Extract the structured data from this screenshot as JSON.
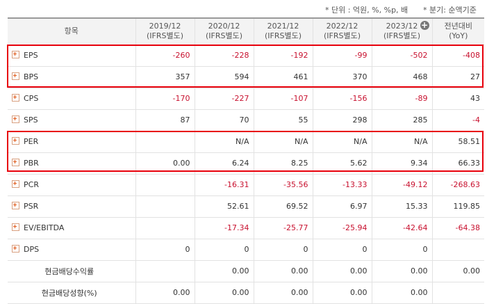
{
  "notes": {
    "unit": "* 단위 : 억원, %, %p, 배",
    "period": "* 분기: 순액기준"
  },
  "table": {
    "headers": [
      {
        "line1": "항목",
        "line2": ""
      },
      {
        "line1": "2019/12",
        "line2": "(IFRS별도)"
      },
      {
        "line1": "2020/12",
        "line2": "(IFRS별도)"
      },
      {
        "line1": "2021/12",
        "line2": "(IFRS별도)"
      },
      {
        "line1": "2022/12",
        "line2": "(IFRS별도)"
      },
      {
        "line1": "2023/12",
        "line2": "(IFRS별도)"
      },
      {
        "line1": "전년대비",
        "line2": "(YoY)"
      }
    ],
    "rows": [
      {
        "label": "EPS",
        "expandable": true,
        "values": [
          "-260",
          "-228",
          "-192",
          "-99",
          "-502",
          "-408"
        ]
      },
      {
        "label": "BPS",
        "expandable": true,
        "values": [
          "357",
          "594",
          "461",
          "370",
          "468",
          "27"
        ]
      },
      {
        "label": "CPS",
        "expandable": true,
        "values": [
          "-170",
          "-227",
          "-107",
          "-156",
          "-89",
          "43"
        ]
      },
      {
        "label": "SPS",
        "expandable": true,
        "values": [
          "87",
          "70",
          "55",
          "298",
          "285",
          "-4"
        ]
      },
      {
        "label": "PER",
        "expandable": true,
        "values": [
          "",
          "N/A",
          "N/A",
          "N/A",
          "N/A",
          "58.51"
        ]
      },
      {
        "label": "PBR",
        "expandable": true,
        "values": [
          "0.00",
          "6.24",
          "8.25",
          "5.62",
          "9.34",
          "66.33"
        ]
      },
      {
        "label": "PCR",
        "expandable": true,
        "values": [
          "",
          "-16.31",
          "-35.56",
          "-13.33",
          "-49.12",
          "-268.63"
        ]
      },
      {
        "label": "PSR",
        "expandable": true,
        "values": [
          "",
          "52.61",
          "69.52",
          "6.97",
          "15.33",
          "119.85"
        ]
      },
      {
        "label": "EV/EBITDA",
        "expandable": true,
        "values": [
          "",
          "-17.34",
          "-25.77",
          "-25.94",
          "-42.64",
          "-64.38"
        ]
      },
      {
        "label": "DPS",
        "expandable": true,
        "values": [
          "0",
          "0",
          "0",
          "0",
          "0",
          ""
        ]
      },
      {
        "label": "현금배당수익률",
        "expandable": false,
        "values": [
          "",
          "0.00",
          "0.00",
          "0.00",
          "0.00",
          "0.00"
        ]
      },
      {
        "label": "현금배당성향(%)",
        "expandable": false,
        "values": [
          "0.00",
          "0.00",
          "0.00",
          "0.00",
          "0.00",
          ""
        ]
      }
    ]
  },
  "colors": {
    "negative": "#c8102e",
    "highlight": "#e8000b"
  },
  "icons": {
    "header_add": "plus-circle-icon",
    "row_expand": "expand-plus-icon"
  }
}
